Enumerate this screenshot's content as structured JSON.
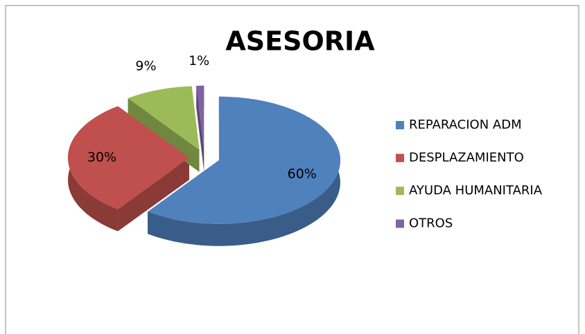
{
  "chart_data": {
    "type": "pie",
    "title": "ASESORIA",
    "categories": [
      "REPARACION ADM",
      "DESPLAZAMIENTO",
      "AYUDA HUMANITARIA",
      "OTROS"
    ],
    "values": [
      60,
      30,
      9,
      1
    ],
    "value_labels": [
      "60%",
      "30%",
      "9%",
      "1%"
    ],
    "colors": [
      "#4f81bd",
      "#c0504d",
      "#9bbb59",
      "#8064a2"
    ],
    "exploded": true,
    "three_d": true,
    "legend": "right"
  }
}
